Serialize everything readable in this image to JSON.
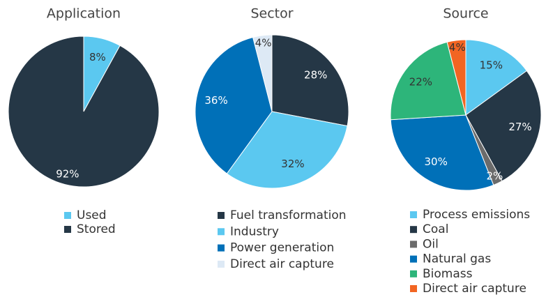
{
  "chart_data": [
    {
      "type": "pie",
      "title": "Application",
      "categories": [
        "Used",
        "Stored"
      ],
      "values": [
        8,
        92
      ],
      "value_labels": [
        "8%",
        "92%"
      ],
      "colors": [
        "#5bc8f0",
        "#253746"
      ]
    },
    {
      "type": "pie",
      "title": "Sector",
      "categories": [
        "Fuel transformation",
        "Industry",
        "Power generation",
        "Direct air capture"
      ],
      "values": [
        28,
        32,
        36,
        4
      ],
      "value_labels": [
        "28%",
        "32%",
        "36%",
        "4%"
      ],
      "colors": [
        "#253746",
        "#5bc8f0",
        "#0070b8",
        "#dde9f5"
      ]
    },
    {
      "type": "pie",
      "title": "Source",
      "categories": [
        "Process emissions",
        "Coal",
        "Oil",
        "Natural gas",
        "Biomass",
        "Direct air capture"
      ],
      "values": [
        15,
        27,
        2,
        30,
        22,
        4
      ],
      "value_labels": [
        "15%",
        "27%",
        "2%",
        "30%",
        "22%",
        "4%"
      ],
      "colors": [
        "#5bc8f0",
        "#253746",
        "#6b6b6b",
        "#0070b8",
        "#2db57a",
        "#f26522"
      ]
    }
  ]
}
